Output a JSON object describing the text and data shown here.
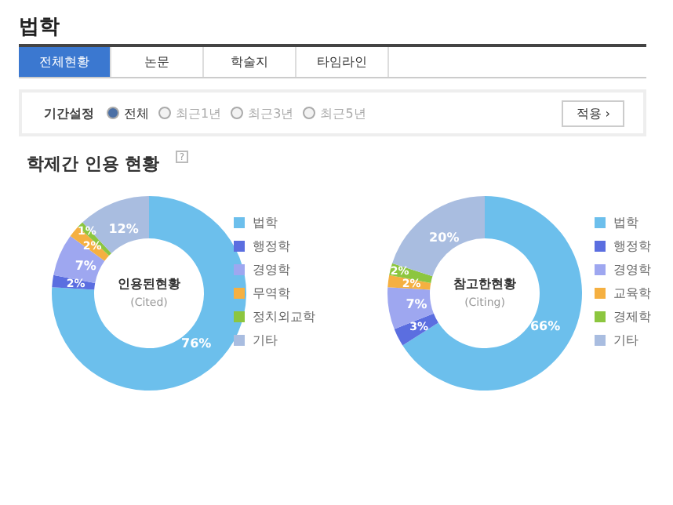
{
  "chart_data": [
    {
      "type": "other",
      "title": "법학",
      "annotations": [
        "전체현황",
        "논문",
        "학술지",
        "타임라인",
        "기간설정",
        "전체",
        "최근1년",
        "최근3년",
        "최근5년",
        "적용 ›"
      ]
    },
    {
      "type": "donut",
      "title": "학제간 인용 현황",
      "categories": [
        "법학",
        "행정학",
        "경영학",
        "무역학",
        "정치외교학",
        "기타"
      ],
      "values": [
        76,
        2,
        7,
        2,
        1,
        12
      ],
      "value_labels": [
        "76%",
        "2%",
        "7%",
        "2%",
        "1%",
        "12%"
      ],
      "colors": [
        "#6cbfec",
        "#5b6ee0",
        "#9ea7f0",
        "#f5b041",
        "#8cc63f",
        "#a9bde0"
      ],
      "annotations": [
        "인용된현황",
        "(Cited)",
        "?"
      ],
      "legend": "right"
    },
    {
      "type": "donut",
      "categories": [
        "법학",
        "행정학",
        "경영학",
        "교육학",
        "경제학",
        "기타"
      ],
      "values": [
        66,
        3,
        7,
        2,
        2,
        20
      ],
      "value_labels": [
        "66%",
        "3%",
        "7%",
        "2%",
        "2%",
        "20%"
      ],
      "colors": [
        "#6cbfec",
        "#5b6ee0",
        "#9ea7f0",
        "#f5b041",
        "#8cc63f",
        "#a9bde0"
      ],
      "annotations": [
        "참고한현황",
        "(Citing)"
      ],
      "legend": "right"
    }
  ]
}
